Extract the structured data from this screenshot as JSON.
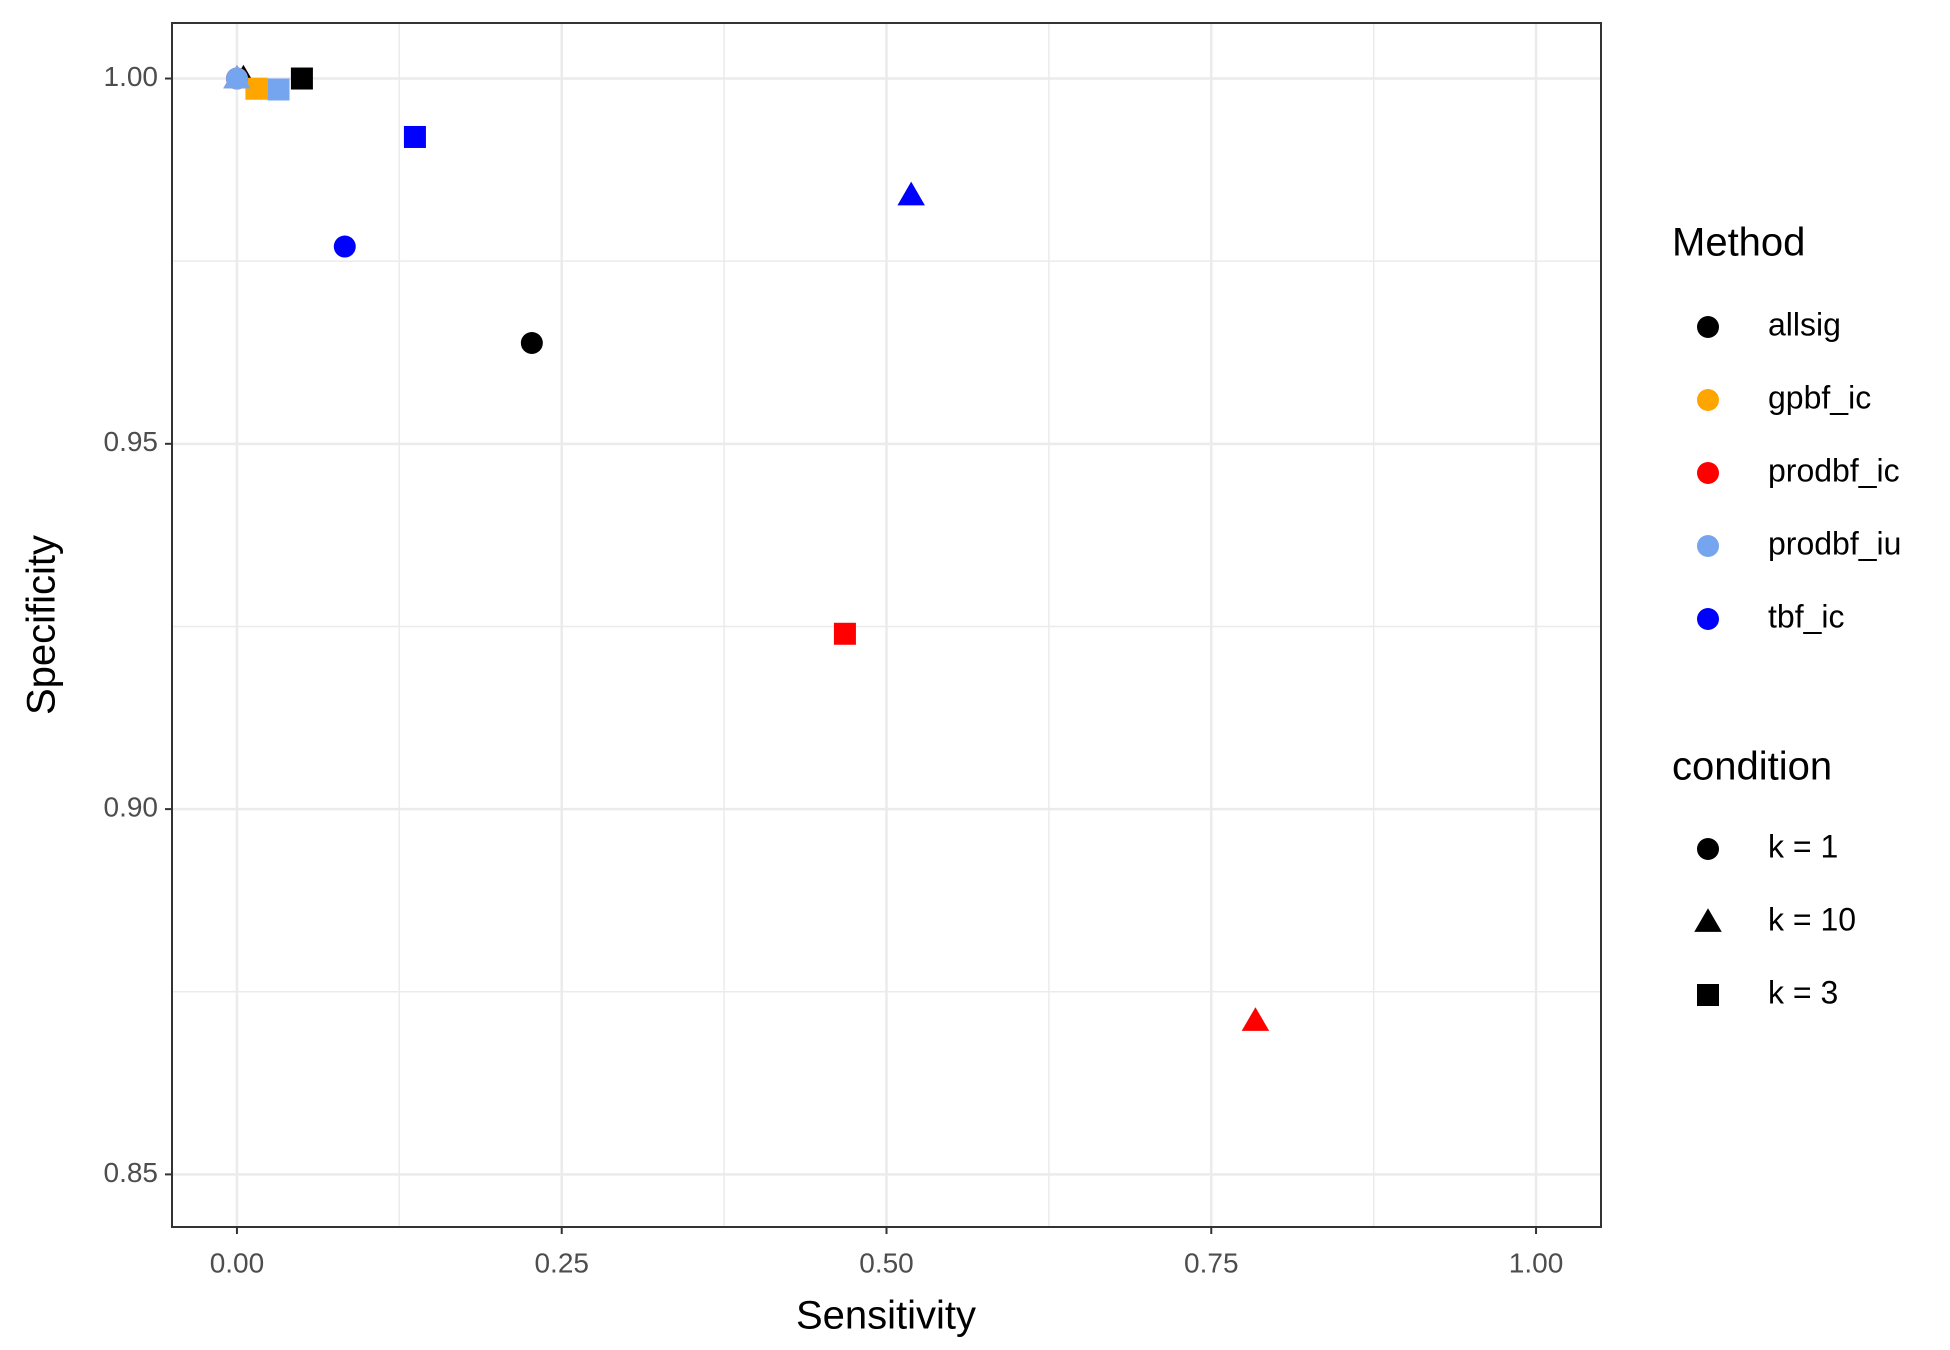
{
  "chart_data": {
    "type": "scatter",
    "x_label": "Sensitivity",
    "y_label": "Specificity",
    "xlim": [
      -0.05,
      1.05
    ],
    "xticks": [
      {
        "value": 0,
        "label": "0.00"
      },
      {
        "value": 0.25,
        "label": "0.25"
      },
      {
        "value": 0.5,
        "label": "0.50"
      },
      {
        "value": 0.75,
        "label": "0.75"
      },
      {
        "value": 1,
        "label": "1.00"
      }
    ],
    "ylim": [
      0.8428,
      1.0076
    ],
    "yticks": [
      {
        "value": 0.85,
        "label": "0.85"
      },
      {
        "value": 0.9,
        "label": "0.90"
      },
      {
        "value": 0.95,
        "label": "0.95"
      },
      {
        "value": 1,
        "label": "1.00"
      }
    ],
    "grid": true,
    "color_legend_title": "Method",
    "shape_legend_title": "condition",
    "conditions": [
      {
        "name": "k = 1",
        "shape": "circle"
      },
      {
        "name": "k = 10",
        "shape": "triangle"
      },
      {
        "name": "k = 3",
        "shape": "square"
      }
    ],
    "series": [
      {
        "name": "allsig",
        "color": "#000000",
        "condition": [
          "k = 1",
          "k = 10",
          "k = 3"
        ],
        "x": [
          0.227,
          0.005,
          0.05
        ],
        "y": [
          0.9638,
          1.0,
          1.0
        ]
      },
      {
        "name": "gpbf_ic",
        "color": "#FFA500",
        "condition": [
          "k = 1",
          "k = 10",
          "k = 3"
        ],
        "x": [
          0,
          0,
          0.015
        ],
        "y": [
          1.0,
          1.0,
          0.9986
        ]
      },
      {
        "name": "prodbf_ic",
        "color": "#FF0000",
        "condition": [
          "k = 1",
          "k = 10",
          "k = 3"
        ],
        "x": [
          0,
          0.784,
          0.468
        ],
        "y": [
          1.0,
          0.871,
          0.924
        ]
      },
      {
        "name": "prodbf_iu",
        "color": "#76A5F0",
        "condition": [
          "k = 1",
          "k = 10",
          "k = 3"
        ],
        "x": [
          0,
          0,
          0.032
        ],
        "y": [
          1.0,
          1.0,
          0.9985
        ]
      },
      {
        "name": "tbf_ic",
        "color": "#0000FF",
        "condition": [
          "k = 1",
          "k = 10",
          "k = 3"
        ],
        "x": [
          0.083,
          0.519,
          0.137
        ],
        "y": [
          0.977,
          0.984,
          0.992
        ]
      }
    ]
  }
}
